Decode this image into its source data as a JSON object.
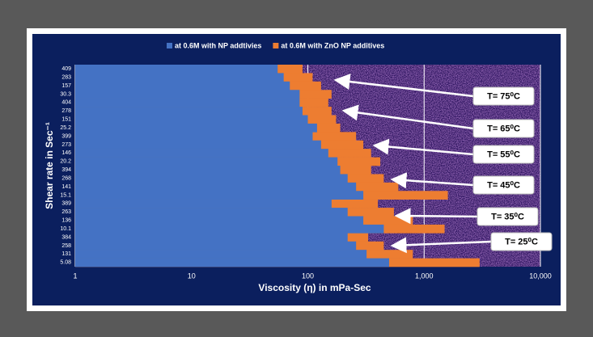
{
  "chart_data": {
    "type": "bar",
    "orientation": "horizontal",
    "xlabel": "Viscosity (η) in mPa-Sec",
    "ylabel": "Shear rate in Sec⁻¹",
    "categories": [
      "409",
      "283",
      "157",
      "30.3",
      "404",
      "278",
      "151",
      "25.2",
      "399",
      "273",
      "146",
      "20.2",
      "394",
      "268",
      "141",
      "15.1",
      "389",
      "263",
      "136",
      "10.1",
      "384",
      "258",
      "131",
      "5.08"
    ],
    "series": [
      {
        "name": "at 0.6M with ZnO NP additives",
        "color": "#ed7d31",
        "values": [
          90,
          110,
          130,
          160,
          150,
          160,
          175,
          190,
          260,
          300,
          350,
          420,
          350,
          450,
          600,
          1600,
          400,
          550,
          800,
          1500,
          330,
          450,
          800,
          3000
        ]
      },
      {
        "name": "at 0.6M with NP addtivies",
        "color": "#4472c4",
        "values": [
          55,
          62,
          70,
          85,
          85,
          90,
          100,
          120,
          110,
          130,
          150,
          180,
          190,
          220,
          260,
          300,
          160,
          220,
          300,
          450,
          220,
          260,
          320,
          500
        ]
      }
    ],
    "xscale": "log",
    "xlim": [
      1,
      10000
    ],
    "xticks": [
      1,
      10,
      100,
      {
        "value": 1000,
        "label": "1,000"
      },
      {
        "value": 10000,
        "label": "10,000"
      }
    ],
    "grid": true,
    "legend": "top",
    "annotations": [
      "T= 75⁰C",
      "T= 65⁰C",
      "T= 55⁰C",
      "T= 45⁰C",
      "T= 35⁰C",
      "T= 25⁰C"
    ]
  }
}
